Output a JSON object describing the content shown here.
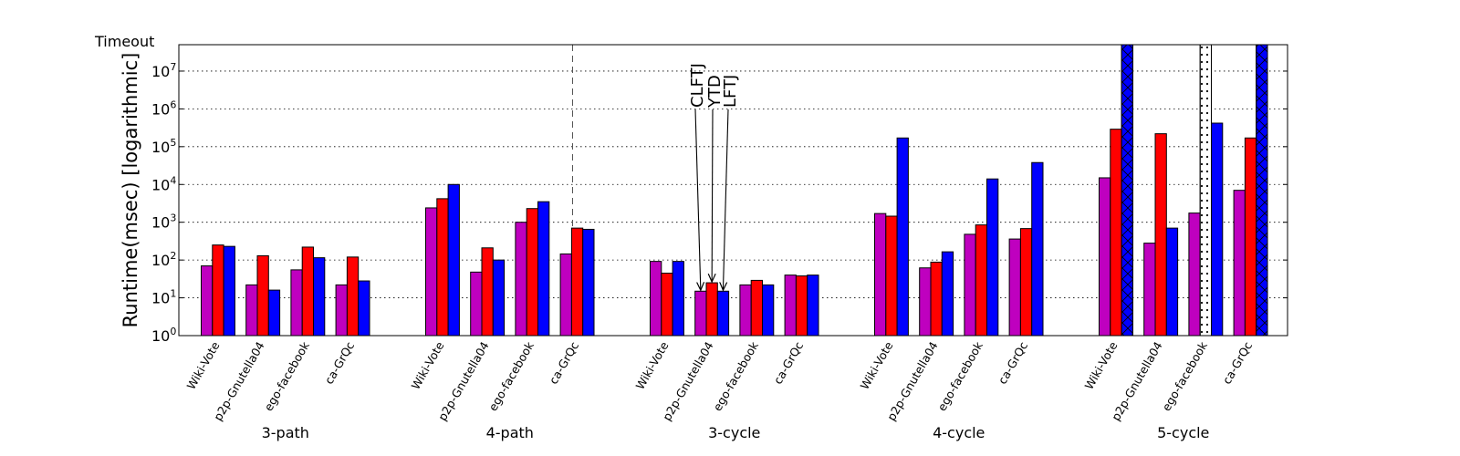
{
  "chart_data": {
    "type": "bar",
    "yscale": "log",
    "ylabel": "Runtime(msec) [logarithmic]",
    "ylim": [
      1,
      50000000
    ],
    "timeout_label": "Timeout",
    "timeout_value": 50000000,
    "yticks": [
      {
        "value": 1,
        "base": "10",
        "exp": "0"
      },
      {
        "value": 10,
        "base": "10",
        "exp": "1"
      },
      {
        "value": 100,
        "base": "10",
        "exp": "2"
      },
      {
        "value": 1000,
        "base": "10",
        "exp": "3"
      },
      {
        "value": 10000,
        "base": "10",
        "exp": "4"
      },
      {
        "value": 100000,
        "base": "10",
        "exp": "5"
      },
      {
        "value": 1000000,
        "base": "10",
        "exp": "6"
      },
      {
        "value": 10000000,
        "base": "10",
        "exp": "7"
      }
    ],
    "series": [
      {
        "name": "CLFTJ",
        "color": "#bf00bf"
      },
      {
        "name": "YTD",
        "color": "#ff0000"
      },
      {
        "name": "LFTJ",
        "color": "#0000ff"
      }
    ],
    "groups": [
      {
        "name": "3-path",
        "datasets": [
          {
            "name": "Wiki-Vote",
            "values": [
              70,
              250,
              230
            ]
          },
          {
            "name": "p2p-Gnutella04",
            "values": [
              22,
              130,
              16
            ]
          },
          {
            "name": "ego-facebook",
            "values": [
              55,
              220,
              115
            ]
          },
          {
            "name": "ca-GrQc",
            "values": [
              22,
              120,
              28
            ]
          }
        ]
      },
      {
        "name": "4-path",
        "datasets": [
          {
            "name": "Wiki-Vote",
            "values": [
              2400,
              4200,
              10000
            ]
          },
          {
            "name": "p2p-Gnutella04",
            "values": [
              48,
              210,
              100
            ]
          },
          {
            "name": "ego-facebook",
            "values": [
              1000,
              2300,
              3500
            ]
          },
          {
            "name": "ca-GrQc",
            "values": [
              145,
              700,
              650
            ]
          }
        ]
      },
      {
        "name": "3-cycle",
        "datasets": [
          {
            "name": "Wiki-Vote",
            "values": [
              92,
              45,
              92
            ]
          },
          {
            "name": "p2p-Gnutella04",
            "values": [
              15,
              25,
              15
            ]
          },
          {
            "name": "ego-facebook",
            "values": [
              22,
              29,
              22
            ]
          },
          {
            "name": "ca-GrQc",
            "values": [
              40,
              38,
              40
            ]
          }
        ]
      },
      {
        "name": "4-cycle",
        "datasets": [
          {
            "name": "Wiki-Vote",
            "values": [
              1700,
              1450,
              170000
            ]
          },
          {
            "name": "p2p-Gnutella04",
            "values": [
              62,
              88,
              165
            ]
          },
          {
            "name": "ego-facebook",
            "values": [
              480,
              850,
              14000
            ]
          },
          {
            "name": "ca-GrQc",
            "values": [
              360,
              680,
              38000
            ]
          }
        ]
      },
      {
        "name": "5-cycle",
        "datasets": [
          {
            "name": "Wiki-Vote",
            "values": [
              15000,
              290000,
              50000000
            ],
            "timeout": [
              false,
              false,
              true
            ]
          },
          {
            "name": "p2p-Gnutella04",
            "values": [
              280,
              220000,
              700
            ],
            "timeout": [
              false,
              false,
              false
            ]
          },
          {
            "name": "ego-facebook",
            "values": [
              1750,
              50000000,
              420000
            ],
            "timeout": [
              false,
              true,
              false
            ]
          },
          {
            "name": "ca-GrQc",
            "values": [
              7000,
              170000,
              50000000
            ],
            "timeout": [
              false,
              false,
              true
            ]
          }
        ]
      }
    ],
    "annotations": [
      {
        "text": "CLFTJ",
        "group": 2,
        "dataset": 1,
        "series": 0
      },
      {
        "text": "YTD",
        "group": 2,
        "dataset": 1,
        "series": 1
      },
      {
        "text": "LFTJ",
        "group": 2,
        "dataset": 1,
        "series": 2
      }
    ],
    "separator_after_group": 1
  }
}
